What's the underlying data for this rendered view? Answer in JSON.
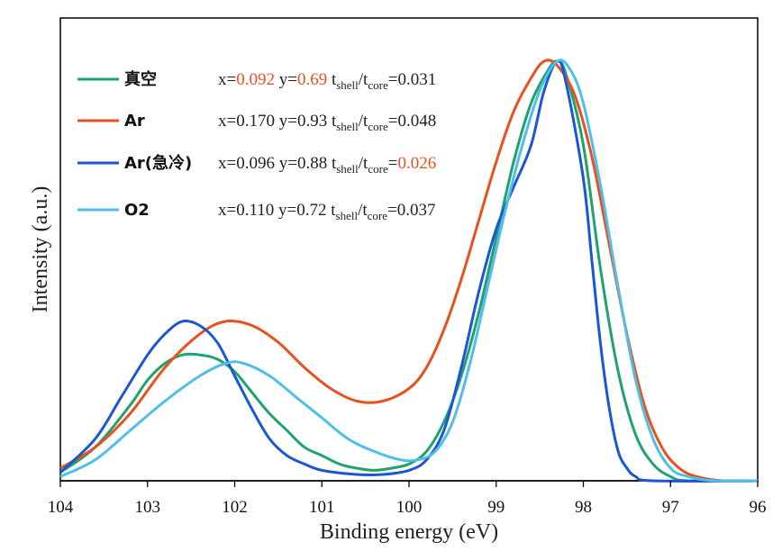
{
  "chart_data": {
    "type": "line",
    "xlabel": "Binding energy (eV)",
    "ylabel": "Intensity (a.u.)",
    "xlim": [
      104,
      96
    ],
    "x_reversed": true,
    "ylim": [
      0,
      1.0
    ],
    "x_ticks": [
      "104",
      "103",
      "102",
      "101",
      "100",
      "99",
      "98",
      "97",
      "96"
    ],
    "grid": false,
    "legend_position": "top-left",
    "highlight_color": "#e8501e",
    "series": [
      {
        "name": "真空",
        "color": "#1fa36e",
        "info": {
          "x": "0.092",
          "y": "0.69",
          "t_ratio": "0.031",
          "highlight": [
            "x",
            "y"
          ]
        },
        "points": [
          [
            104,
            0.02
          ],
          [
            103.6,
            0.08
          ],
          [
            103.2,
            0.18
          ],
          [
            103.0,
            0.24
          ],
          [
            102.8,
            0.28
          ],
          [
            102.6,
            0.3
          ],
          [
            102.4,
            0.3
          ],
          [
            102.2,
            0.29
          ],
          [
            102.0,
            0.26
          ],
          [
            101.8,
            0.21
          ],
          [
            101.6,
            0.16
          ],
          [
            101.4,
            0.12
          ],
          [
            101.2,
            0.08
          ],
          [
            101.0,
            0.06
          ],
          [
            100.8,
            0.04
          ],
          [
            100.6,
            0.03
          ],
          [
            100.4,
            0.025
          ],
          [
            100.2,
            0.03
          ],
          [
            100.0,
            0.04
          ],
          [
            99.8,
            0.07
          ],
          [
            99.6,
            0.14
          ],
          [
            99.4,
            0.25
          ],
          [
            99.2,
            0.4
          ],
          [
            99.0,
            0.58
          ],
          [
            98.8,
            0.76
          ],
          [
            98.6,
            0.9
          ],
          [
            98.4,
            0.98
          ],
          [
            98.3,
            1.0
          ],
          [
            98.2,
            0.97
          ],
          [
            98.0,
            0.8
          ],
          [
            97.8,
            0.5
          ],
          [
            97.6,
            0.26
          ],
          [
            97.4,
            0.11
          ],
          [
            97.2,
            0.04
          ],
          [
            97.0,
            0.01
          ],
          [
            96.8,
            0.0
          ],
          [
            96.0,
            0.0
          ]
        ]
      },
      {
        "name": "Ar",
        "color": "#e8501e",
        "info": {
          "x": "0.170",
          "y": "0.93",
          "t_ratio": "0.048",
          "highlight": []
        },
        "points": [
          [
            104,
            0.03
          ],
          [
            103.6,
            0.08
          ],
          [
            103.2,
            0.16
          ],
          [
            102.8,
            0.27
          ],
          [
            102.4,
            0.35
          ],
          [
            102.1,
            0.38
          ],
          [
            101.8,
            0.37
          ],
          [
            101.5,
            0.33
          ],
          [
            101.2,
            0.27
          ],
          [
            100.9,
            0.22
          ],
          [
            100.6,
            0.19
          ],
          [
            100.3,
            0.19
          ],
          [
            100.0,
            0.22
          ],
          [
            99.8,
            0.27
          ],
          [
            99.6,
            0.36
          ],
          [
            99.4,
            0.48
          ],
          [
            99.2,
            0.62
          ],
          [
            99.0,
            0.76
          ],
          [
            98.8,
            0.88
          ],
          [
            98.6,
            0.96
          ],
          [
            98.45,
            1.0
          ],
          [
            98.3,
            0.99
          ],
          [
            98.1,
            0.92
          ],
          [
            97.9,
            0.77
          ],
          [
            97.7,
            0.56
          ],
          [
            97.5,
            0.35
          ],
          [
            97.3,
            0.18
          ],
          [
            97.1,
            0.08
          ],
          [
            96.9,
            0.03
          ],
          [
            96.7,
            0.01
          ],
          [
            96.4,
            0.0
          ],
          [
            96.0,
            0.0
          ]
        ]
      },
      {
        "name": "Ar(急冷)",
        "color": "#1a56d6",
        "info": {
          "x": "0.096",
          "y": "0.88",
          "t_ratio": "0.026",
          "highlight": [
            "t_ratio"
          ]
        },
        "points": [
          [
            104,
            0.02
          ],
          [
            103.6,
            0.1
          ],
          [
            103.3,
            0.2
          ],
          [
            103.0,
            0.3
          ],
          [
            102.8,
            0.35
          ],
          [
            102.6,
            0.38
          ],
          [
            102.4,
            0.37
          ],
          [
            102.2,
            0.33
          ],
          [
            102.0,
            0.25
          ],
          [
            101.8,
            0.17
          ],
          [
            101.6,
            0.1
          ],
          [
            101.4,
            0.06
          ],
          [
            101.2,
            0.04
          ],
          [
            101.0,
            0.025
          ],
          [
            100.6,
            0.015
          ],
          [
            100.3,
            0.015
          ],
          [
            100.0,
            0.025
          ],
          [
            99.8,
            0.05
          ],
          [
            99.6,
            0.12
          ],
          [
            99.4,
            0.27
          ],
          [
            99.2,
            0.45
          ],
          [
            99.0,
            0.6
          ],
          [
            98.8,
            0.7
          ],
          [
            98.6,
            0.8
          ],
          [
            98.45,
            0.93
          ],
          [
            98.3,
            1.0
          ],
          [
            98.2,
            0.95
          ],
          [
            98.0,
            0.72
          ],
          [
            97.9,
            0.52
          ],
          [
            97.8,
            0.32
          ],
          [
            97.7,
            0.17
          ],
          [
            97.6,
            0.07
          ],
          [
            97.5,
            0.03
          ],
          [
            97.4,
            0.01
          ],
          [
            97.2,
            0.0
          ],
          [
            96.0,
            0.0
          ]
        ]
      },
      {
        "name": "O2",
        "color": "#4fbfea",
        "info": {
          "x": "0.110",
          "y": "0.72",
          "t_ratio": "0.037",
          "highlight": []
        },
        "points": [
          [
            104,
            0.01
          ],
          [
            103.6,
            0.05
          ],
          [
            103.2,
            0.12
          ],
          [
            102.8,
            0.19
          ],
          [
            102.4,
            0.25
          ],
          [
            102.1,
            0.28
          ],
          [
            101.9,
            0.28
          ],
          [
            101.6,
            0.25
          ],
          [
            101.3,
            0.2
          ],
          [
            101.0,
            0.15
          ],
          [
            100.7,
            0.1
          ],
          [
            100.4,
            0.07
          ],
          [
            100.1,
            0.05
          ],
          [
            99.9,
            0.05
          ],
          [
            99.7,
            0.07
          ],
          [
            99.5,
            0.14
          ],
          [
            99.3,
            0.28
          ],
          [
            99.1,
            0.46
          ],
          [
            98.9,
            0.64
          ],
          [
            98.7,
            0.8
          ],
          [
            98.5,
            0.93
          ],
          [
            98.3,
            1.0
          ],
          [
            98.15,
            0.98
          ],
          [
            98.0,
            0.9
          ],
          [
            97.8,
            0.7
          ],
          [
            97.6,
            0.46
          ],
          [
            97.4,
            0.24
          ],
          [
            97.2,
            0.1
          ],
          [
            97.0,
            0.03
          ],
          [
            96.8,
            0.01
          ],
          [
            96.5,
            0.0
          ],
          [
            96.0,
            0.0
          ]
        ]
      }
    ]
  }
}
